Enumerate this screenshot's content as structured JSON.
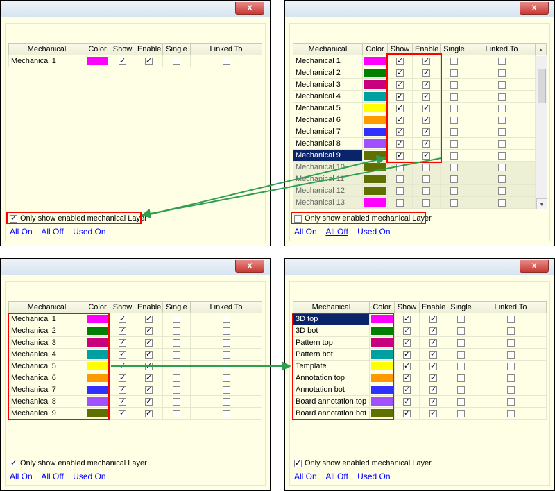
{
  "headers": {
    "mechanical": "Mechanical",
    "color": "Color",
    "show": "Show",
    "enable": "Enable",
    "single": "Single",
    "linked": "Linked To"
  },
  "filter_label": "Only show enabled mechanical Layer",
  "links": {
    "all_on": "All On",
    "all_off": "All Off",
    "used_on": "Used On"
  },
  "panel_tl": {
    "rows": [
      {
        "name": "Mechanical 1",
        "color": "#ff00ff",
        "show": true,
        "enable": true,
        "single": false,
        "linked": false
      }
    ],
    "filter_checked": true
  },
  "panel_tr": {
    "rows": [
      {
        "name": "Mechanical 1",
        "color": "#ff00ff",
        "show": true,
        "enable": true,
        "single": false,
        "linked": false
      },
      {
        "name": "Mechanical 2",
        "color": "#007f00",
        "show": true,
        "enable": true,
        "single": false,
        "linked": false
      },
      {
        "name": "Mechanical 3",
        "color": "#c9007d",
        "show": true,
        "enable": true,
        "single": false,
        "linked": false
      },
      {
        "name": "Mechanical 4",
        "color": "#00a0a0",
        "show": true,
        "enable": true,
        "single": false,
        "linked": false
      },
      {
        "name": "Mechanical 5",
        "color": "#ffff00",
        "show": true,
        "enable": true,
        "single": false,
        "linked": false
      },
      {
        "name": "Mechanical 6",
        "color": "#ff9900",
        "show": true,
        "enable": true,
        "single": false,
        "linked": false
      },
      {
        "name": "Mechanical 7",
        "color": "#3030ff",
        "show": true,
        "enable": true,
        "single": false,
        "linked": false
      },
      {
        "name": "Mechanical 8",
        "color": "#a050ff",
        "show": true,
        "enable": true,
        "single": false,
        "linked": false
      },
      {
        "name": "Mechanical 9",
        "color": "#607000",
        "show": true,
        "enable": true,
        "single": false,
        "linked": false,
        "selected": true
      },
      {
        "name": "Mechanical 10",
        "color": "#607000",
        "show": false,
        "enable": false,
        "single": false,
        "linked": false,
        "disabled": true
      },
      {
        "name": "Mechanical 11",
        "color": "#607000",
        "show": false,
        "enable": false,
        "single": false,
        "linked": false,
        "disabled": true
      },
      {
        "name": "Mechanical 12",
        "color": "#607000",
        "show": false,
        "enable": false,
        "single": false,
        "linked": false,
        "disabled": true
      },
      {
        "name": "Mechanical 13",
        "color": "#ff00ff",
        "show": false,
        "enable": false,
        "single": false,
        "linked": false,
        "disabled": true
      }
    ],
    "filter_checked": false,
    "all_off_underline": true
  },
  "panel_bl": {
    "rows": [
      {
        "name": "Mechanical 1",
        "color": "#ff00ff",
        "show": true,
        "enable": true,
        "single": false,
        "linked": false
      },
      {
        "name": "Mechanical 2",
        "color": "#007f00",
        "show": true,
        "enable": true,
        "single": false,
        "linked": false
      },
      {
        "name": "Mechanical 3",
        "color": "#c9007d",
        "show": true,
        "enable": true,
        "single": false,
        "linked": false
      },
      {
        "name": "Mechanical 4",
        "color": "#00a0a0",
        "show": true,
        "enable": true,
        "single": false,
        "linked": false
      },
      {
        "name": "Mechanical 5",
        "color": "#ffff00",
        "show": true,
        "enable": true,
        "single": false,
        "linked": false
      },
      {
        "name": "Mechanical 6",
        "color": "#ff9900",
        "show": true,
        "enable": true,
        "single": false,
        "linked": false
      },
      {
        "name": "Mechanical 7",
        "color": "#3030ff",
        "show": true,
        "enable": true,
        "single": false,
        "linked": false
      },
      {
        "name": "Mechanical 8",
        "color": "#a050ff",
        "show": true,
        "enable": true,
        "single": false,
        "linked": false
      },
      {
        "name": "Mechanical 9",
        "color": "#607000",
        "show": true,
        "enable": true,
        "single": false,
        "linked": false
      }
    ],
    "filter_checked": true
  },
  "panel_br": {
    "rows": [
      {
        "name": "3D top",
        "color": "#ff00ff",
        "show": true,
        "enable": true,
        "single": false,
        "linked": false,
        "selected": true
      },
      {
        "name": "3D bot",
        "color": "#007f00",
        "show": true,
        "enable": true,
        "single": false,
        "linked": false
      },
      {
        "name": "Pattern top",
        "color": "#c9007d",
        "show": true,
        "enable": true,
        "single": false,
        "linked": false
      },
      {
        "name": "Pattern bot",
        "color": "#00a0a0",
        "show": true,
        "enable": true,
        "single": false,
        "linked": false
      },
      {
        "name": "Template",
        "color": "#ffff00",
        "show": true,
        "enable": true,
        "single": false,
        "linked": false
      },
      {
        "name": "Annotation top",
        "color": "#ff9900",
        "show": true,
        "enable": true,
        "single": false,
        "linked": false
      },
      {
        "name": "Annotation bot",
        "color": "#3030ff",
        "show": true,
        "enable": true,
        "single": false,
        "linked": false
      },
      {
        "name": "Board annotation top",
        "color": "#a050ff",
        "show": true,
        "enable": true,
        "single": false,
        "linked": false
      },
      {
        "name": "Board annotation bot",
        "color": "#607000",
        "show": true,
        "enable": true,
        "single": false,
        "linked": false
      }
    ],
    "filter_checked": true
  },
  "annotations": {
    "arrow_color": "#2e9e4f",
    "redbox_color": "#ff0000"
  }
}
